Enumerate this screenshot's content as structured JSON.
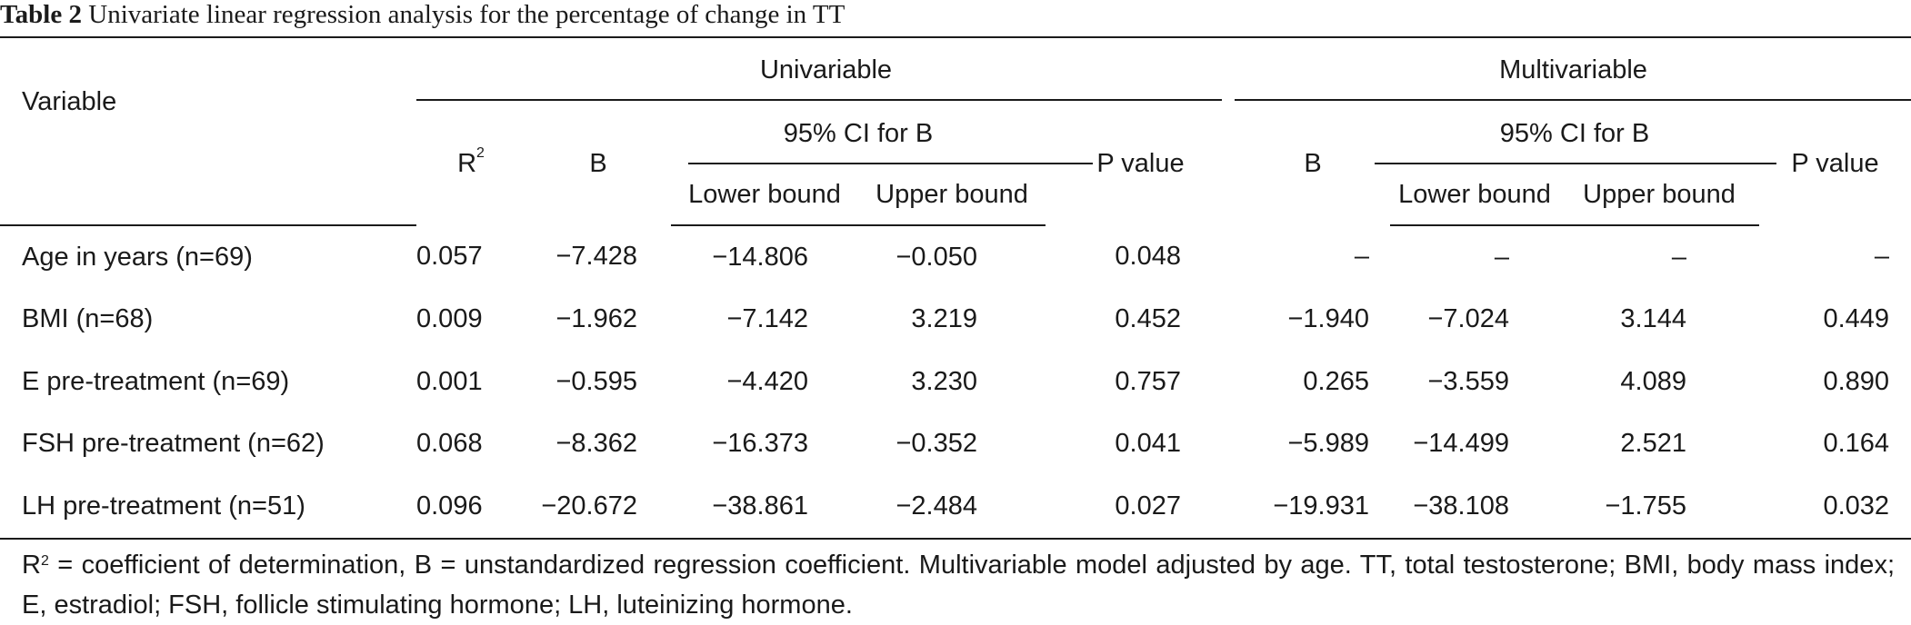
{
  "caption": {
    "label": "Table 2",
    "text": "Univariate linear regression analysis for the percentage of change in TT"
  },
  "headers": {
    "variable": "Variable",
    "univariable": "Univariable",
    "multivariable": "Multivariable",
    "r2_base": "R",
    "r2_sup": "2",
    "b": "B",
    "ci": "95% CI for B",
    "lower": "Lower bound",
    "upper": "Upper bound",
    "p": "P value"
  },
  "rows": [
    {
      "variable": "Age in years (n=69)",
      "r2": "0.057",
      "b": "−7.428",
      "lower": "−14.806",
      "upper": "−0.050",
      "p": "0.048",
      "mb": "–",
      "mlower": "–",
      "mupper": "–",
      "mp": "–"
    },
    {
      "variable": "BMI (n=68)",
      "r2": "0.009",
      "b": "−1.962",
      "lower": "−7.142",
      "upper": "3.219",
      "p": "0.452",
      "mb": "−1.940",
      "mlower": "−7.024",
      "mupper": "3.144",
      "mp": "0.449"
    },
    {
      "variable": "E pre-treatment (n=69)",
      "r2": "0.001",
      "b": "−0.595",
      "lower": "−4.420",
      "upper": "3.230",
      "p": "0.757",
      "mb": "0.265",
      "mlower": "−3.559",
      "mupper": "4.089",
      "mp": "0.890"
    },
    {
      "variable": "FSH pre-treatment (n=62)",
      "r2": "0.068",
      "b": "−8.362",
      "lower": "−16.373",
      "upper": "−0.352",
      "p": "0.041",
      "mb": "−5.989",
      "mlower": "−14.499",
      "mupper": "2.521",
      "mp": "0.164"
    },
    {
      "variable": "LH pre-treatment (n=51)",
      "r2": "0.096",
      "b": "−20.672",
      "lower": "−38.861",
      "upper": "−2.484",
      "p": "0.027",
      "mb": "−19.931",
      "mlower": "−38.108",
      "mupper": "−1.755",
      "mp": "0.032"
    }
  ],
  "footnote": {
    "r2_base": "R",
    "r2_sup": "2",
    "text": " = coefficient of determination, B = unstandardized regression coefficient. Multivariable model adjusted by age. TT, total testosterone; BMI, body mass index; E, estradiol; FSH, follicle stimulating hormone; LH, luteinizing hormone."
  }
}
